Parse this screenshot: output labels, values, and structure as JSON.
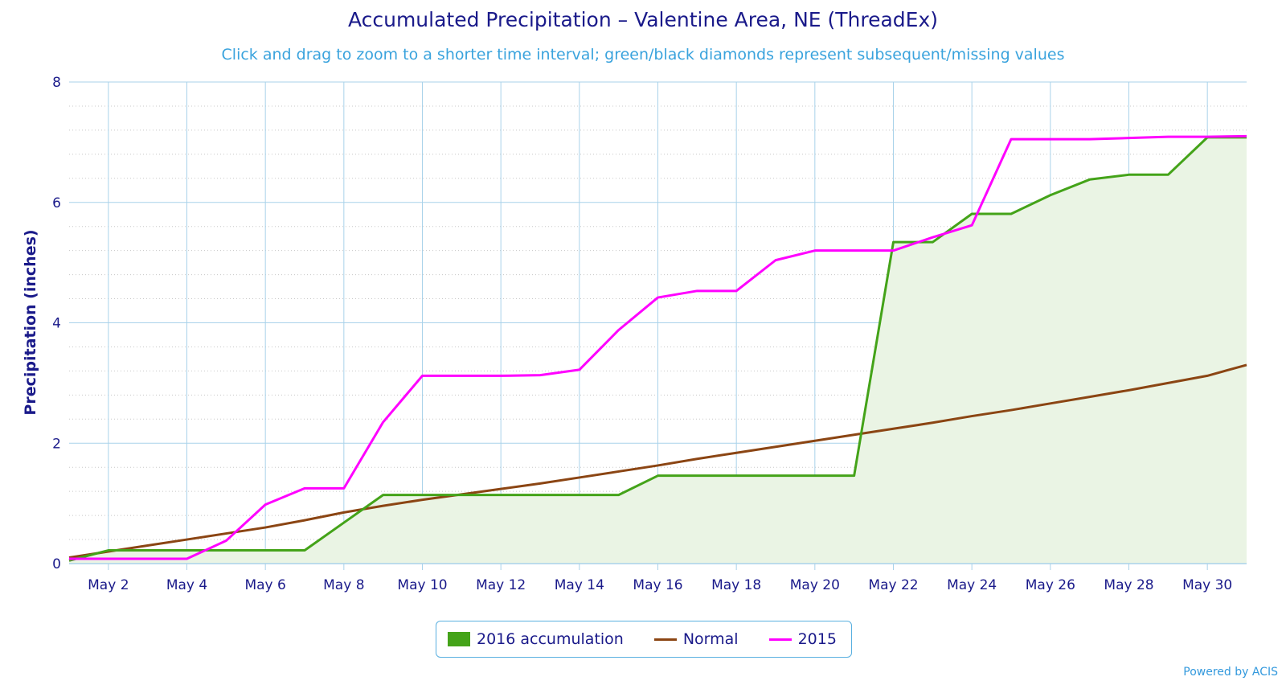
{
  "title": "Accumulated Precipitation – Valentine Area, NE (ThreadEx)",
  "subtitle": "Click and drag to zoom to a shorter time interval; green/black diamonds represent subsequent/missing values",
  "credit": "Powered by ACIS",
  "colors": {
    "series2016": "#44a319",
    "area2016": "#eaf4e4",
    "normal": "#8b4513",
    "series2015": "#ff00ff",
    "grid": "#a9d2ea",
    "axis_text": "#1a1a8a"
  },
  "chart_data": {
    "type": "line",
    "title": "Accumulated Precipitation – Valentine Area, NE (ThreadEx)",
    "subtitle": "Click and drag to zoom to a shorter time interval; green/black diamonds represent subsequent/missing values",
    "xlabel": "",
    "ylabel": "Precipitation (inches)",
    "ylim": [
      0,
      8
    ],
    "xlim": [
      "2016-05-01",
      "2016-05-31"
    ],
    "y_ticks": [
      "0",
      "2",
      "4",
      "6",
      "8"
    ],
    "x_ticks": [
      "May 2",
      "May 4",
      "May 6",
      "May 8",
      "May 10",
      "May 12",
      "May 14",
      "May 16",
      "May 18",
      "May 20",
      "May 22",
      "May 24",
      "May 26",
      "May 28",
      "May 30"
    ],
    "grid": true,
    "legend_position": "bottom-center",
    "x": [
      "2016-05-01",
      "2016-05-02",
      "2016-05-03",
      "2016-05-04",
      "2016-05-05",
      "2016-05-06",
      "2016-05-07",
      "2016-05-08",
      "2016-05-09",
      "2016-05-10",
      "2016-05-11",
      "2016-05-12",
      "2016-05-13",
      "2016-05-14",
      "2016-05-15",
      "2016-05-16",
      "2016-05-17",
      "2016-05-18",
      "2016-05-19",
      "2016-05-20",
      "2016-05-21",
      "2016-05-22",
      "2016-05-23",
      "2016-05-24",
      "2016-05-25",
      "2016-05-26",
      "2016-05-27",
      "2016-05-28",
      "2016-05-29",
      "2016-05-30",
      "2016-05-31"
    ],
    "series": [
      {
        "name": "2016 accumulation",
        "style": "area",
        "values": [
          0.05,
          0.22,
          0.22,
          0.22,
          0.22,
          0.22,
          0.22,
          0.68,
          1.14,
          1.14,
          1.14,
          1.14,
          1.14,
          1.14,
          1.14,
          1.46,
          1.46,
          1.46,
          1.46,
          1.46,
          1.46,
          5.34,
          5.34,
          5.81,
          5.81,
          6.12,
          6.38,
          6.46,
          6.46,
          7.08,
          7.08
        ]
      },
      {
        "name": "Normal",
        "style": "line",
        "values": [
          0.1,
          0.2,
          0.3,
          0.4,
          0.5,
          0.6,
          0.72,
          0.85,
          0.96,
          1.06,
          1.15,
          1.24,
          1.33,
          1.43,
          1.53,
          1.63,
          1.74,
          1.84,
          1.94,
          2.04,
          2.14,
          2.24,
          2.34,
          2.45,
          2.55,
          2.66,
          2.77,
          2.88,
          3.0,
          3.12,
          3.3
        ]
      },
      {
        "name": "2015",
        "style": "line",
        "values": [
          0.08,
          0.08,
          0.08,
          0.08,
          0.38,
          0.98,
          1.25,
          1.25,
          2.35,
          3.12,
          3.12,
          3.12,
          3.13,
          3.22,
          3.88,
          4.42,
          4.53,
          4.53,
          5.04,
          5.2,
          5.2,
          5.2,
          5.42,
          5.62,
          7.05,
          7.05,
          7.05,
          7.07,
          7.09,
          7.09,
          7.1
        ]
      }
    ]
  }
}
